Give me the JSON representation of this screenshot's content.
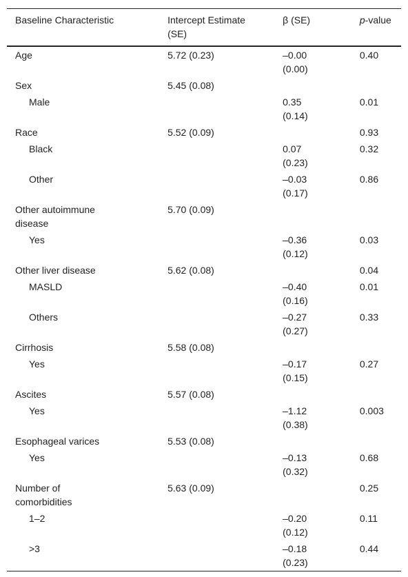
{
  "table": {
    "header": [
      "Baseline Characteristic",
      "Intercept Estimate (SE)",
      "β (SE)",
      {
        "italic": "p",
        "text": "-value"
      }
    ],
    "rows": [
      {
        "level": 0,
        "cells": [
          "Age",
          "5.72 (0.23)",
          "–0.00 (0.00)",
          "0.40"
        ]
      },
      {
        "level": 0,
        "cells": [
          "Sex",
          "5.45 (0.08)",
          null,
          null
        ]
      },
      {
        "level": 1,
        "cells": [
          "Male",
          null,
          "0.35 (0.14)",
          "0.01"
        ]
      },
      {
        "level": 0,
        "cells": [
          "Race",
          "5.52 (0.09)",
          null,
          "0.93"
        ]
      },
      {
        "level": 1,
        "cells": [
          "Black",
          null,
          "0.07 (0.23)",
          "0.32"
        ]
      },
      {
        "level": 1,
        "cells": [
          "Other",
          null,
          "–0.03 (0.17)",
          "0.86"
        ]
      },
      {
        "level": 0,
        "cells": [
          "Other autoimmune disease",
          "5.70 (0.09)",
          null,
          null
        ]
      },
      {
        "level": 1,
        "cells": [
          "Yes",
          null,
          "–0.36 (0.12)",
          "0.03"
        ]
      },
      {
        "level": 0,
        "cells": [
          "Other liver disease",
          "5.62 (0.08)",
          null,
          "0.04"
        ]
      },
      {
        "level": 1,
        "cells": [
          "MASLD",
          null,
          "–0.40 (0.16)",
          "0.01"
        ]
      },
      {
        "level": 1,
        "cells": [
          "Others",
          null,
          "–0.27 (0.27)",
          "0.33"
        ]
      },
      {
        "level": 0,
        "cells": [
          "Cirrhosis",
          "5.58 (0.08)",
          null,
          null
        ]
      },
      {
        "level": 1,
        "cells": [
          "Yes",
          null,
          "–0.17 (0.15)",
          "0.27"
        ]
      },
      {
        "level": 0,
        "cells": [
          "Ascites",
          "5.57 (0.08)",
          null,
          null
        ]
      },
      {
        "level": 1,
        "cells": [
          "Yes",
          null,
          "–1.12 (0.38)",
          "0.003"
        ]
      },
      {
        "level": 0,
        "cells": [
          "Esophageal varices",
          "5.53 (0.08)",
          null,
          null
        ]
      },
      {
        "level": 1,
        "cells": [
          "Yes",
          null,
          "–0.13 (0.32)",
          "0.68"
        ]
      },
      {
        "level": 0,
        "cells": [
          "Number of comorbidities",
          "5.63 (0.09)",
          null,
          "0.25"
        ]
      },
      {
        "level": 1,
        "cells": [
          "1–2",
          null,
          "–0.20 (0.12)",
          "0.11"
        ]
      },
      {
        "level": 1,
        "cells": [
          ">3",
          null,
          "–0.18 (0.23)",
          "0.44"
        ]
      }
    ]
  }
}
